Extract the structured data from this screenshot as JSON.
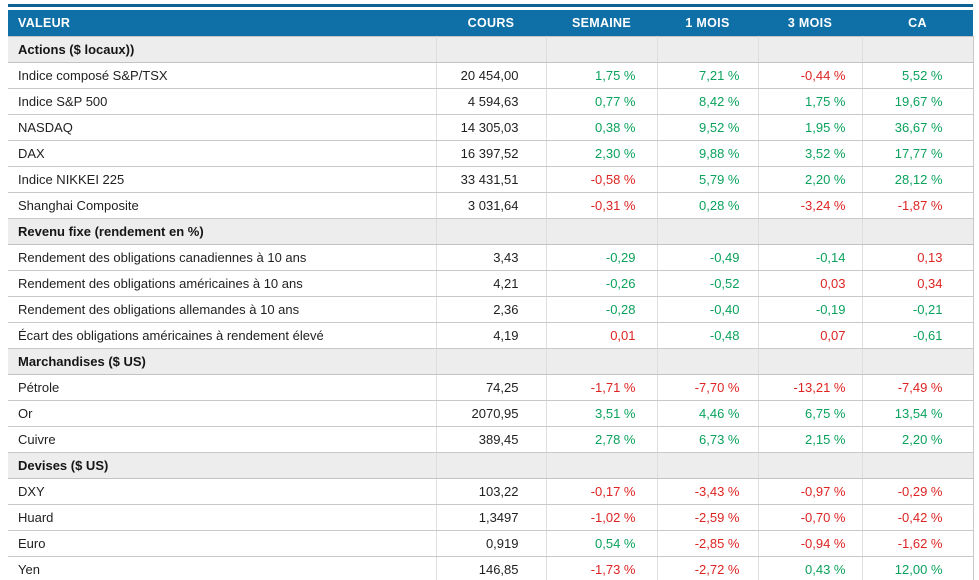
{
  "table": {
    "colors": {
      "header_bg": "#0f70a8",
      "header_text": "#ffffff",
      "stripe": "#0d6294",
      "positive": "#0aa25c",
      "negative": "#dd2423",
      "section_bg": "#ededed"
    },
    "columns": [
      "VALEUR",
      "COURS",
      "SEMAINE",
      "1 MOIS",
      "3 MOIS",
      "CA"
    ],
    "sections": [
      {
        "title": "Actions ($ locaux))",
        "rows": [
          {
            "label": "Indice composé S&P/TSX",
            "cours": "20 454,00",
            "values": [
              "1,75 %",
              "7,21 %",
              "-0,44 %",
              "5,52 %"
            ],
            "colors": [
              "pos",
              "pos",
              "neg",
              "pos"
            ]
          },
          {
            "label": "Indice S&P 500",
            "cours": "4 594,63",
            "values": [
              "0,77 %",
              "8,42 %",
              "1,75 %",
              "19,67 %"
            ],
            "colors": [
              "pos",
              "pos",
              "pos",
              "pos"
            ]
          },
          {
            "label": "NASDAQ",
            "cours": "14 305,03",
            "values": [
              "0,38 %",
              "9,52 %",
              "1,95 %",
              "36,67 %"
            ],
            "colors": [
              "pos",
              "pos",
              "pos",
              "pos"
            ]
          },
          {
            "label": "DAX",
            "cours": "16 397,52",
            "values": [
              "2,30 %",
              "9,88 %",
              "3,52 %",
              "17,77 %"
            ],
            "colors": [
              "pos",
              "pos",
              "pos",
              "pos"
            ]
          },
          {
            "label": "Indice NIKKEI 225",
            "cours": "33 431,51",
            "values": [
              "-0,58 %",
              "5,79 %",
              "2,20 %",
              "28,12 %"
            ],
            "colors": [
              "neg",
              "pos",
              "pos",
              "pos"
            ]
          },
          {
            "label": "Shanghai Composite",
            "cours": "3 031,64",
            "values": [
              "-0,31 %",
              "0,28 %",
              "-3,24 %",
              "-1,87 %"
            ],
            "colors": [
              "neg",
              "pos",
              "neg",
              "neg"
            ]
          }
        ]
      },
      {
        "title": "Revenu fixe (rendement en %)",
        "rows": [
          {
            "label": "Rendement des obligations canadiennes à 10 ans",
            "cours": "3,43",
            "values": [
              "-0,29",
              "-0,49",
              "-0,14",
              "0,13"
            ],
            "colors": [
              "pos",
              "pos",
              "pos",
              "neg"
            ]
          },
          {
            "label": "Rendement des obligations américaines à 10 ans",
            "cours": "4,21",
            "values": [
              "-0,26",
              "-0,52",
              "0,03",
              "0,34"
            ],
            "colors": [
              "pos",
              "pos",
              "neg",
              "neg"
            ]
          },
          {
            "label": "Rendement des obligations allemandes à 10 ans",
            "cours": "2,36",
            "values": [
              "-0,28",
              "-0,40",
              "-0,19",
              "-0,21"
            ],
            "colors": [
              "pos",
              "pos",
              "pos",
              "pos"
            ]
          },
          {
            "label": "Écart des obligations américaines à rendement élevé",
            "cours": "4,19",
            "values": [
              "0,01",
              "-0,48",
              "0,07",
              "-0,61"
            ],
            "colors": [
              "neg",
              "pos",
              "neg",
              "pos"
            ]
          }
        ]
      },
      {
        "title": "Marchandises ($ US)",
        "rows": [
          {
            "label": "Pétrole",
            "cours": "74,25",
            "values": [
              "-1,71 %",
              "-7,70 %",
              "-13,21 %",
              "-7,49 %"
            ],
            "colors": [
              "neg",
              "neg",
              "neg",
              "neg"
            ]
          },
          {
            "label": "Or",
            "cours": "2070,95",
            "values": [
              "3,51 %",
              "4,46 %",
              "6,75 %",
              "13,54 %"
            ],
            "colors": [
              "pos",
              "pos",
              "pos",
              "pos"
            ]
          },
          {
            "label": "Cuivre",
            "cours": "389,45",
            "values": [
              "2,78 %",
              "6,73 %",
              "2,15 %",
              "2,20 %"
            ],
            "colors": [
              "pos",
              "pos",
              "pos",
              "pos"
            ]
          }
        ]
      },
      {
        "title": "Devises ($ US)",
        "rows": [
          {
            "label": "DXY",
            "cours": "103,22",
            "values": [
              "-0,17 %",
              "-3,43 %",
              "-0,97 %",
              "-0,29 %"
            ],
            "colors": [
              "neg",
              "neg",
              "neg",
              "neg"
            ]
          },
          {
            "label": "Huard",
            "cours": "1,3497",
            "values": [
              "-1,02 %",
              "-2,59 %",
              "-0,70 %",
              "-0,42 %"
            ],
            "colors": [
              "neg",
              "neg",
              "neg",
              "neg"
            ]
          },
          {
            "label": "Euro",
            "cours": "0,919",
            "values": [
              "0,54 %",
              "-2,85 %",
              "-0,94 %",
              "-1,62 %"
            ],
            "colors": [
              "pos",
              "neg",
              "neg",
              "neg"
            ]
          },
          {
            "label": "Yen",
            "cours": "146,85",
            "values": [
              "-1,73 %",
              "-2,72 %",
              "0,43 %",
              "12,00 %"
            ],
            "colors": [
              "neg",
              "neg",
              "pos",
              "pos"
            ]
          }
        ]
      }
    ]
  }
}
